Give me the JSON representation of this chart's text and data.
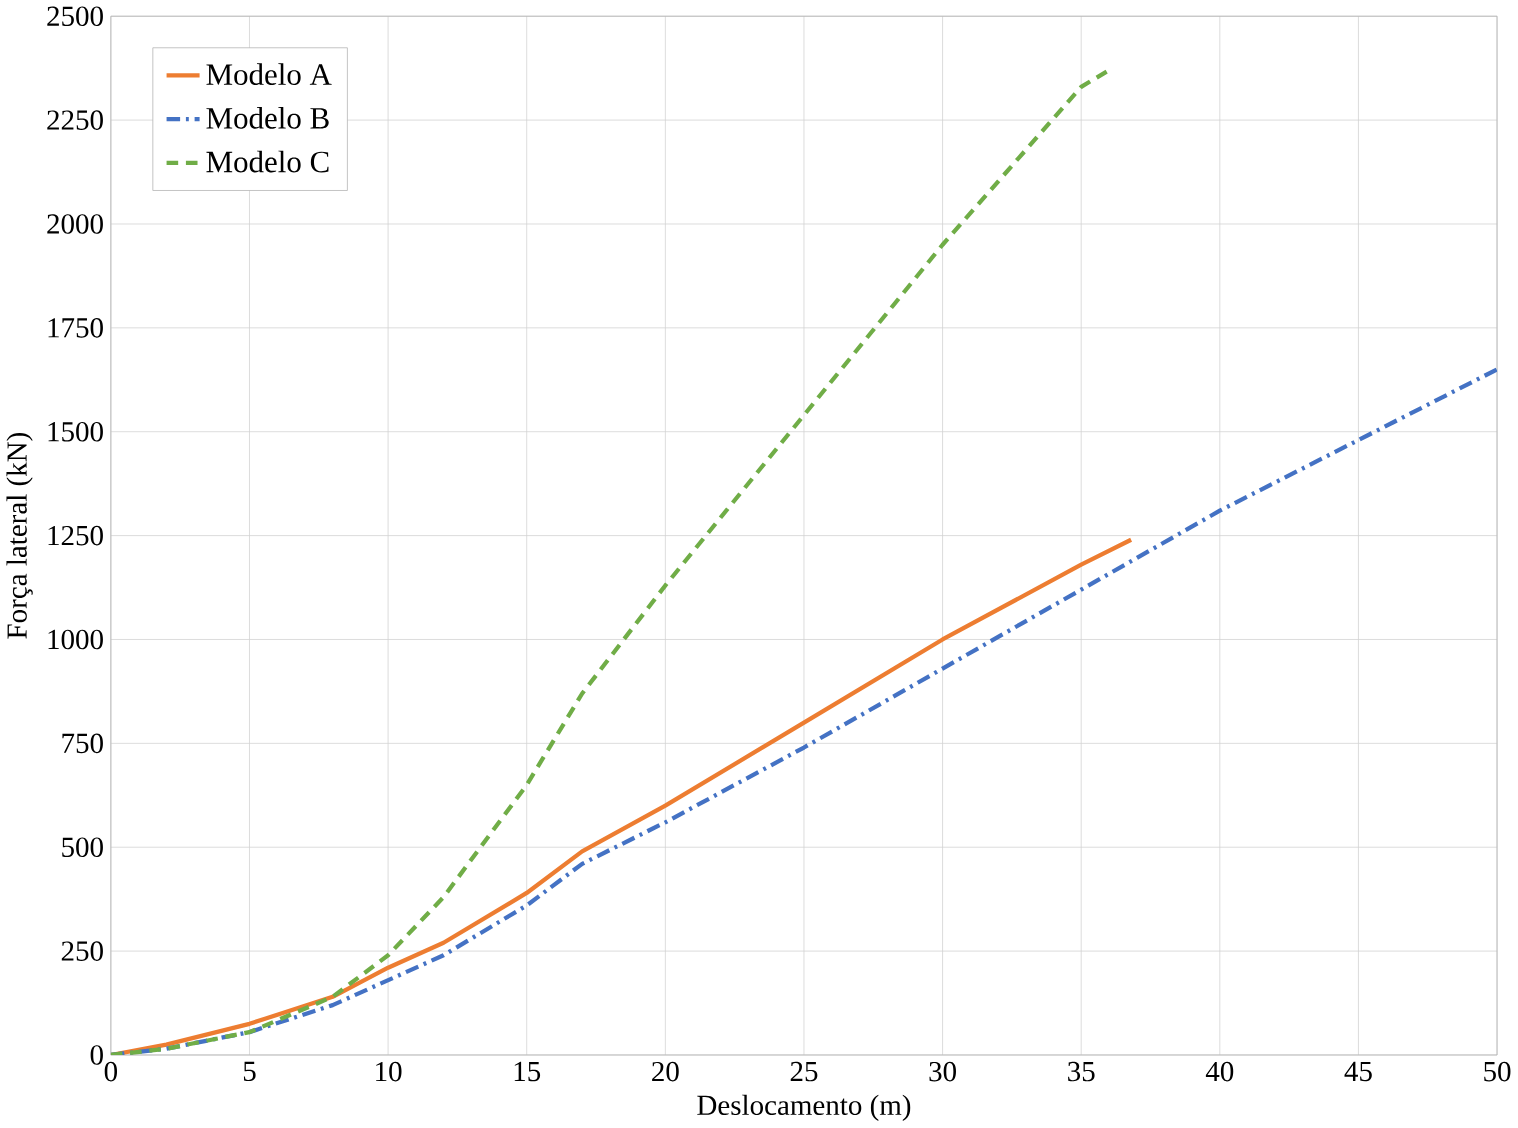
{
  "chart_data": {
    "type": "line",
    "xlabel": "Deslocamento (m)",
    "ylabel": "Força lateral (kN)",
    "xlim": [
      0,
      50
    ],
    "ylim": [
      0,
      2500
    ],
    "xticks": [
      0,
      5,
      10,
      15,
      20,
      25,
      30,
      35,
      40,
      45,
      50
    ],
    "yticks": [
      0,
      250,
      500,
      750,
      1000,
      1250,
      1500,
      1750,
      2000,
      2250,
      2500
    ],
    "grid": true,
    "legend": "top left",
    "marker": "none",
    "series": [
      {
        "name": "Modelo A",
        "color": "#ed7d31",
        "line_style": "solid",
        "x": [
          0,
          2,
          5,
          8,
          10,
          12,
          15,
          17,
          20,
          25,
          30,
          35,
          36.8
        ],
        "values": [
          0,
          25,
          75,
          140,
          210,
          270,
          390,
          490,
          600,
          800,
          1000,
          1180,
          1240
        ]
      },
      {
        "name": "Modelo B",
        "color": "#4472c4",
        "line_style": "dashdot",
        "x": [
          0,
          2,
          5,
          8,
          10,
          12,
          15,
          17,
          20,
          25,
          30,
          35,
          40,
          45,
          50
        ],
        "values": [
          0,
          15,
          55,
          120,
          180,
          240,
          360,
          460,
          560,
          740,
          930,
          1120,
          1310,
          1480,
          1650
        ]
      },
      {
        "name": "Modelo C",
        "color": "#70ad47",
        "line_style": "dashed",
        "x": [
          0,
          2,
          5,
          8,
          10,
          12,
          15,
          17,
          20,
          25,
          30,
          35,
          36
        ],
        "values": [
          0,
          15,
          55,
          140,
          240,
          380,
          650,
          870,
          1130,
          1540,
          1950,
          2330,
          2370
        ]
      }
    ]
  }
}
